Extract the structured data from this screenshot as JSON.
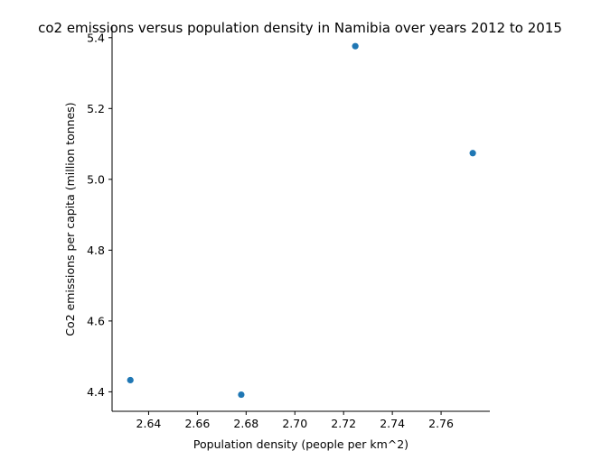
{
  "chart_data": {
    "type": "scatter",
    "title": "co2 emissions versus population density in Namibia over years 2012 to 2015",
    "xlabel": "Population density (people per km^2)",
    "ylabel": "Co2 emissions per capita (million tonnes)",
    "xlim": [
      2.625,
      2.78
    ],
    "ylim": [
      4.345,
      5.43
    ],
    "xticks": [
      2.64,
      2.66,
      2.68,
      2.7,
      2.72,
      2.74,
      2.76
    ],
    "xtick_labels": [
      "2.64",
      "2.66",
      "2.68",
      "2.70",
      "2.72",
      "2.74",
      "2.76"
    ],
    "yticks": [
      4.4,
      4.6,
      4.8,
      5.0,
      5.2,
      5.4
    ],
    "ytick_labels": [
      "4.4",
      "4.6",
      "4.8",
      "5.0",
      "5.2",
      "5.4"
    ],
    "grid": false,
    "legend": "none",
    "marker_color": "#1f77b4",
    "points": [
      {
        "x": 2.6325,
        "y": 4.433
      },
      {
        "x": 2.678,
        "y": 4.392
      },
      {
        "x": 2.7248,
        "y": 5.376
      },
      {
        "x": 2.773,
        "y": 5.074
      }
    ]
  }
}
